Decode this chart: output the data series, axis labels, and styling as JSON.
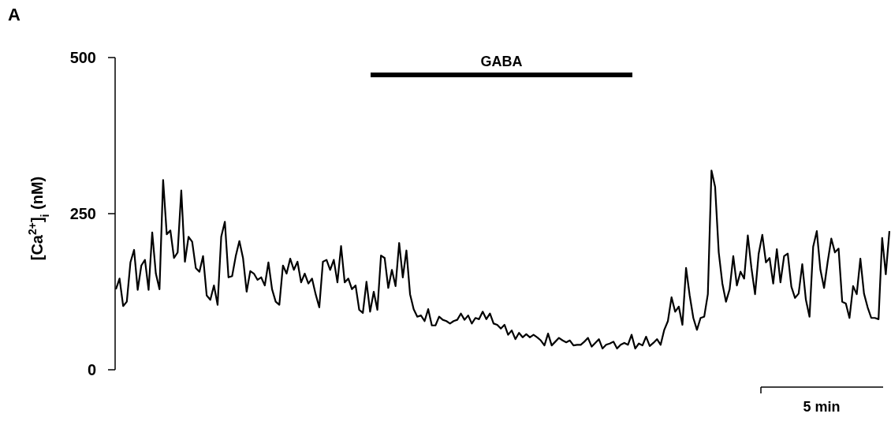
{
  "chart_data": {
    "type": "line",
    "title": "A",
    "ylabel": "[Ca$^{2+}$]$_{i}$ (nM)",
    "annotations": [
      "GABA",
      "5 min"
    ],
    "categories": [
      null,
      null,
      null,
      null,
      null,
      null,
      null,
      null,
      null,
      null,
      null,
      null,
      null,
      null,
      null,
      null,
      null,
      null,
      null,
      null,
      null,
      null,
      null,
      null,
      null,
      null,
      null,
      null,
      null,
      null,
      null,
      null,
      null,
      null,
      null,
      null,
      null,
      null,
      null,
      null,
      null,
      null,
      null,
      null,
      null,
      null,
      null,
      null,
      null,
      null,
      null,
      null,
      null,
      null,
      null,
      null,
      null,
      null,
      null,
      null,
      null,
      null,
      null,
      null,
      null,
      null,
      null,
      null,
      null,
      null,
      null,
      null,
      null,
      null,
      null,
      null,
      null,
      null,
      null,
      null,
      null,
      null,
      null,
      null,
      null,
      null,
      null,
      null,
      null,
      null,
      null,
      null,
      null,
      null,
      null,
      null,
      null,
      null,
      null,
      null,
      null,
      null,
      null,
      null,
      null,
      null,
      null,
      null,
      null,
      null,
      null,
      null,
      null,
      null,
      null,
      null,
      null,
      null,
      null,
      null,
      null,
      null,
      null,
      null,
      null,
      null,
      null,
      null,
      null,
      null,
      null,
      null,
      null,
      null,
      null,
      null,
      null,
      null,
      null,
      null,
      null,
      null,
      null,
      null,
      null,
      null,
      null,
      null,
      null,
      null,
      null,
      null,
      null,
      null,
      null,
      null,
      null,
      null,
      null,
      null,
      null,
      null,
      null,
      null,
      null,
      null,
      null,
      null,
      null,
      null,
      null,
      null,
      null,
      null,
      null,
      null,
      null,
      null,
      null,
      null,
      null,
      null,
      null,
      null,
      null,
      null,
      null,
      null,
      null,
      null,
      null,
      null,
      null,
      null,
      null,
      null,
      null,
      null,
      null,
      null,
      null,
      null,
      null,
      null,
      null,
      null,
      null,
      null,
      null,
      null,
      null,
      null,
      null,
      null
    ],
    "ylim": [
      0,
      500
    ],
    "yticks": [
      0,
      250,
      500
    ],
    "tick_labels": "y",
    "line_style": "solid",
    "series": [
      {
        "color": "#000000",
        "values": [
          129,
          146,
          102,
          109,
          172,
          192,
          128,
          167,
          176,
          128,
          220,
          154,
          129,
          304,
          217,
          223,
          179,
          188,
          287,
          173,
          213,
          205,
          163,
          157,
          182,
          119,
          112,
          135,
          104,
          213,
          237,
          148,
          150,
          182,
          206,
          179,
          125,
          158,
          154,
          144,
          148,
          135,
          172,
          129,
          109,
          104,
          167,
          154,
          178,
          160,
          173,
          140,
          154,
          138,
          146,
          121,
          100,
          173,
          176,
          160,
          176,
          140,
          198,
          140,
          146,
          129,
          135,
          96,
          91,
          141,
          93,
          125,
          96,
          183,
          179,
          131,
          160,
          134,
          203,
          148,
          191,
          121,
          97,
          85,
          87,
          78,
          97,
          71,
          71,
          85,
          80,
          78,
          74,
          78,
          80,
          90,
          80,
          87,
          74,
          83,
          81,
          93,
          81,
          90,
          74,
          72,
          66,
          72,
          56,
          63,
          49,
          59,
          52,
          57,
          52,
          56,
          52,
          47,
          39,
          58,
          39,
          45,
          51,
          47,
          44,
          47,
          39,
          40,
          40,
          45,
          51,
          37,
          43,
          49,
          34,
          40,
          42,
          45,
          34,
          40,
          43,
          40,
          56,
          34,
          42,
          39,
          53,
          38,
          43,
          49,
          40,
          64,
          78,
          116,
          93,
          101,
          72,
          163,
          119,
          83,
          64,
          83,
          85,
          121,
          319,
          293,
          188,
          138,
          109,
          129,
          182,
          135,
          157,
          146,
          215,
          163,
          121,
          186,
          216,
          172,
          179,
          138,
          193,
          140,
          182,
          186,
          133,
          115,
          122,
          169,
          112,
          85,
          197,
          222,
          160,
          131,
          173,
          210,
          188,
          194,
          109,
          106,
          83,
          134,
          121,
          178,
          122,
          100,
          83,
          83,
          81,
          211,
          153,
          222
        ]
      }
    ]
  }
}
